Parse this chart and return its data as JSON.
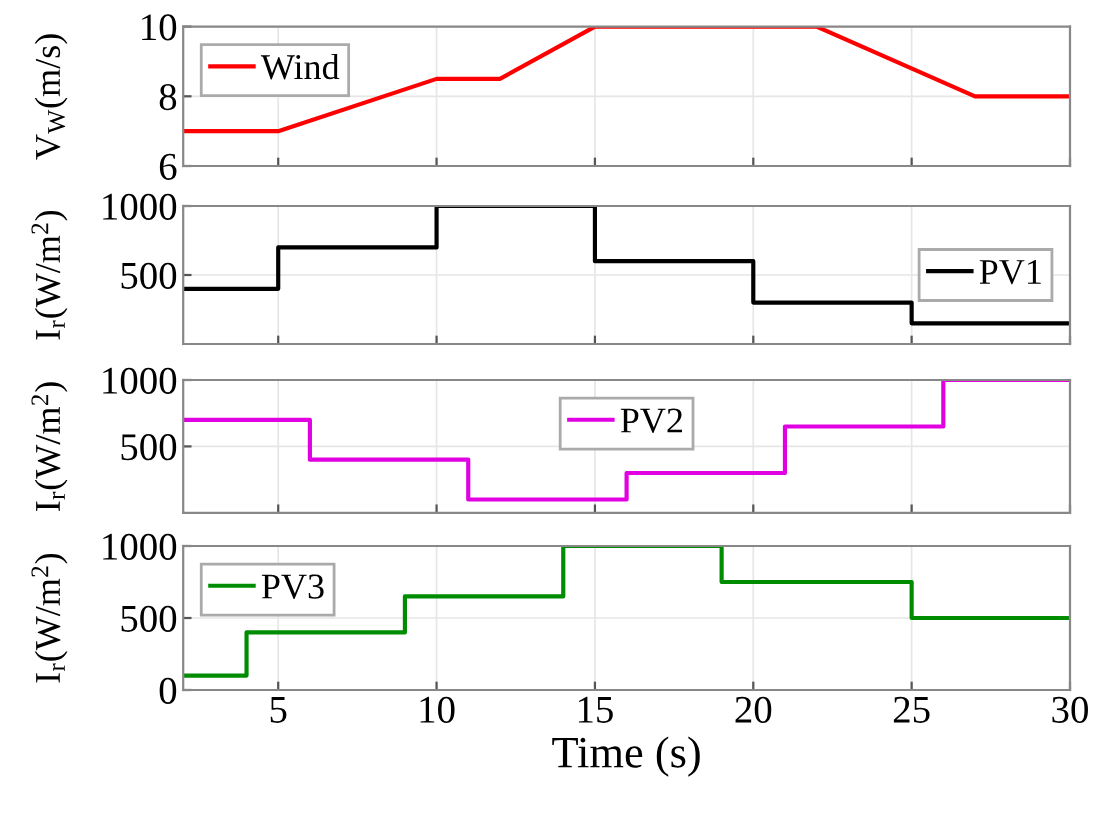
{
  "chart_data": [
    {
      "type": "line",
      "ylabel": "V$_{W}$(m/s)",
      "x": [
        2,
        5,
        10,
        12,
        15,
        22,
        27,
        30
      ],
      "series": [
        {
          "name": "Wind",
          "color": "#ff0000",
          "values": [
            7,
            7,
            8.5,
            8.5,
            10,
            10,
            8,
            8
          ]
        }
      ],
      "xlim": [
        2,
        30
      ],
      "xticks": [
        5,
        10,
        15,
        20,
        25,
        30
      ],
      "ylim": [
        6,
        10
      ],
      "yticks": [
        6,
        8,
        10
      ],
      "grid": true,
      "legend": "top left",
      "tick_labels": "y"
    },
    {
      "type": "step",
      "ylabel": "I$_{r}$(W/m$^{2}$)",
      "x": [
        2,
        5,
        10,
        15,
        20,
        25,
        30
      ],
      "series": [
        {
          "name": "PV1",
          "color": "#000000",
          "values": [
            400,
            700,
            1000,
            600,
            300,
            150,
            150
          ]
        }
      ],
      "xlim": [
        2,
        30
      ],
      "xticks": [
        5,
        10,
        15,
        20,
        25,
        30
      ],
      "ylim": [
        0,
        1000
      ],
      "yticks": [
        500,
        1000
      ],
      "grid": true,
      "legend": "right",
      "tick_labels": "y"
    },
    {
      "type": "step",
      "ylabel": "I$_{r}$(W/m$^{2}$)",
      "x": [
        2,
        6,
        11,
        16,
        21,
        26,
        30
      ],
      "series": [
        {
          "name": "PV2",
          "color": "#e100e1",
          "values": [
            700,
            400,
            100,
            300,
            650,
            1000,
            1000
          ]
        }
      ],
      "xlim": [
        2,
        30
      ],
      "xticks": [
        5,
        10,
        15,
        20,
        25,
        30
      ],
      "ylim": [
        0,
        1000
      ],
      "yticks": [
        500,
        1000
      ],
      "grid": true,
      "legend": "top",
      "tick_labels": "y"
    },
    {
      "type": "step",
      "ylabel": "I$_{r}$(W/m$^{2}$)",
      "xlabel": "Time (s)",
      "x": [
        2,
        4,
        9,
        14,
        19,
        25,
        30
      ],
      "series": [
        {
          "name": "PV3",
          "color": "#008c00",
          "values": [
            100,
            400,
            650,
            1000,
            750,
            500,
            500
          ]
        }
      ],
      "xlim": [
        2,
        30
      ],
      "xticks": [
        5,
        10,
        15,
        20,
        25,
        30
      ],
      "ylim": [
        0,
        1000
      ],
      "yticks": [
        0,
        500,
        1000
      ],
      "grid": true,
      "legend": "top left"
    }
  ]
}
